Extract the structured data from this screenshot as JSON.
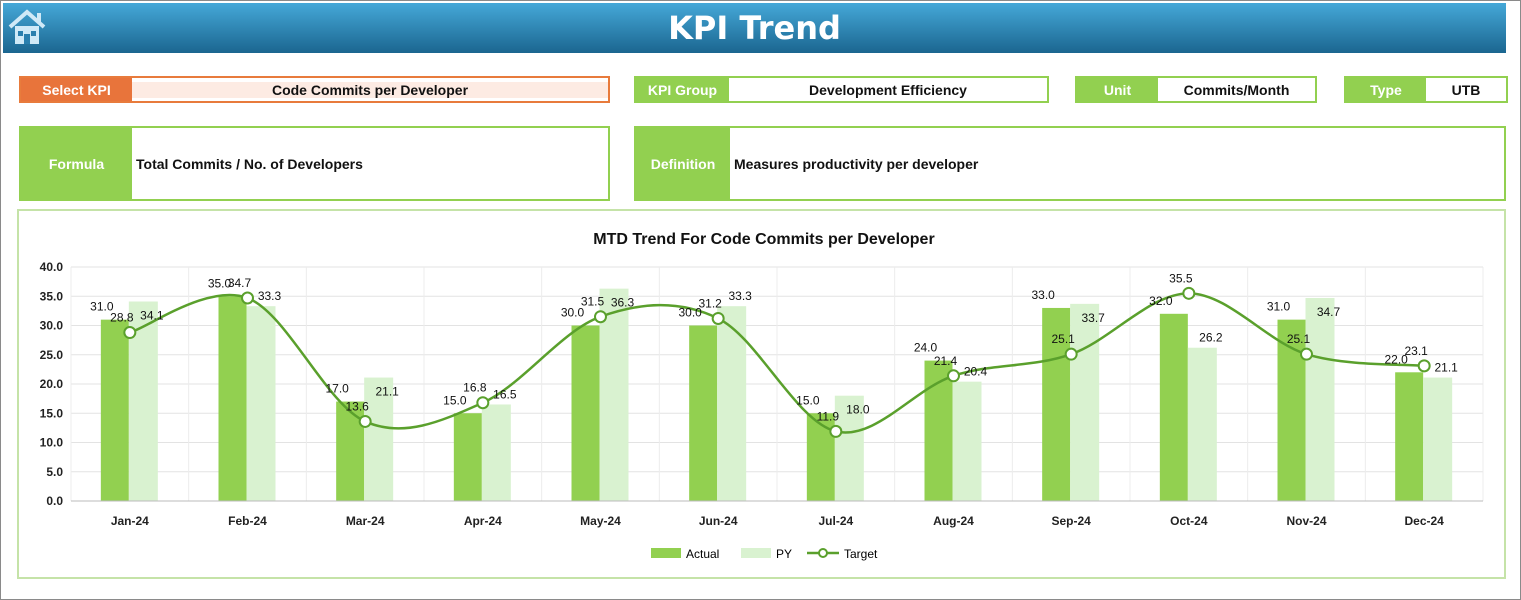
{
  "header": {
    "title": "KPI Trend",
    "home_icon": "home-icon"
  },
  "select_kpi": {
    "label": "Select KPI",
    "value": "Code Commits per Developer"
  },
  "kpi_group": {
    "label": "KPI Group",
    "value": "Development Efficiency"
  },
  "unit": {
    "label": "Unit",
    "value": "Commits/Month"
  },
  "type": {
    "label": "Type",
    "value": "UTB"
  },
  "formula": {
    "label": "Formula",
    "value": "Total Commits / No. of Developers"
  },
  "definition": {
    "label": "Definition",
    "value": "Measures productivity per developer"
  },
  "colors": {
    "actual": "#92d050",
    "py": "#d9f2d0",
    "target": "#5aa02c",
    "orange": "#e8743b",
    "header": "#1b6690"
  },
  "chart_data": {
    "type": "bar",
    "title": "MTD Trend For Code Commits per Developer",
    "categories": [
      "Jan-24",
      "Feb-24",
      "Mar-24",
      "Apr-24",
      "May-24",
      "Jun-24",
      "Jul-24",
      "Aug-24",
      "Sep-24",
      "Oct-24",
      "Nov-24",
      "Dec-24"
    ],
    "ylim": [
      0,
      40
    ],
    "yticks": [
      "0.0",
      "5.0",
      "10.0",
      "15.0",
      "20.0",
      "25.0",
      "30.0",
      "35.0",
      "40.0"
    ],
    "grid": true,
    "legend_position": "bottom",
    "series": [
      {
        "name": "Actual",
        "type": "bar",
        "values": [
          31.0,
          35.0,
          17.0,
          15.0,
          30.0,
          30.0,
          15.0,
          24.0,
          33.0,
          32.0,
          31.0,
          22.0
        ]
      },
      {
        "name": "PY",
        "type": "bar",
        "values": [
          34.1,
          33.3,
          21.1,
          16.5,
          36.3,
          33.3,
          18.0,
          20.4,
          33.7,
          26.2,
          34.7,
          21.1
        ]
      },
      {
        "name": "Target",
        "type": "line",
        "values": [
          28.8,
          34.7,
          13.6,
          16.8,
          31.5,
          31.2,
          11.9,
          21.4,
          25.1,
          35.5,
          25.1,
          23.1
        ]
      }
    ]
  }
}
